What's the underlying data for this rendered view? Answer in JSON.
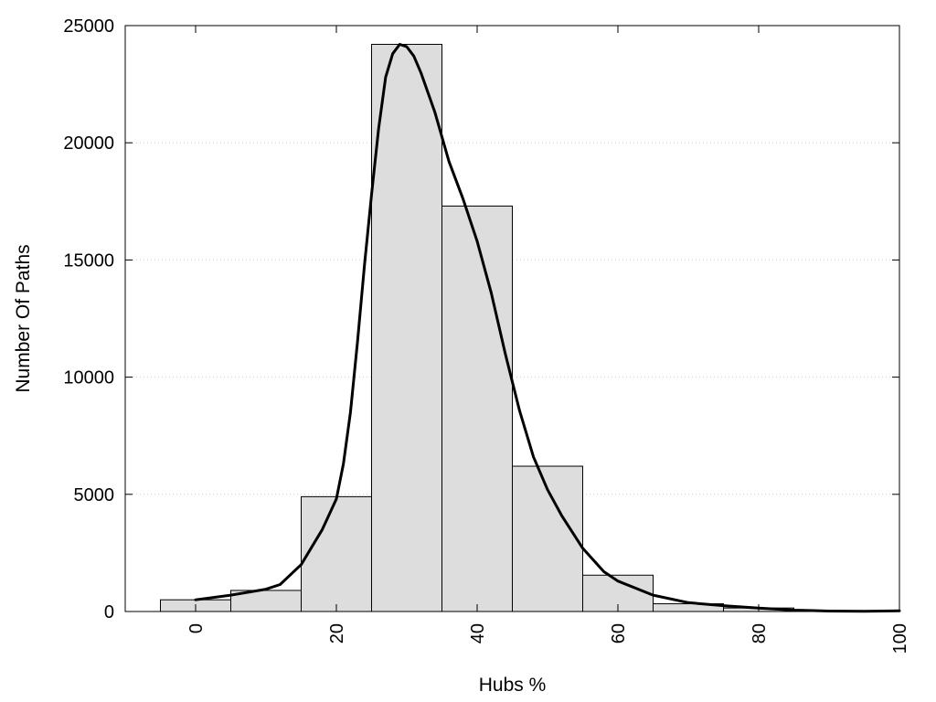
{
  "chart_data": {
    "type": "bar",
    "xlabel": "Hubs %",
    "ylabel": "Number Of Paths",
    "xlim": [
      -10,
      100
    ],
    "ylim": [
      0,
      25000
    ],
    "xticks": [
      0,
      20,
      40,
      60,
      80,
      100
    ],
    "yticks": [
      0,
      5000,
      10000,
      15000,
      20000,
      25000
    ],
    "grid": "y-dotted",
    "bins": [
      {
        "x0": -5,
        "x1": 5,
        "value": 500
      },
      {
        "x0": 5,
        "x1": 15,
        "value": 900
      },
      {
        "x0": 15,
        "x1": 25,
        "value": 4900
      },
      {
        "x0": 25,
        "x1": 35,
        "value": 24200
      },
      {
        "x0": 35,
        "x1": 45,
        "value": 17300
      },
      {
        "x0": 45,
        "x1": 55,
        "value": 6200
      },
      {
        "x0": 55,
        "x1": 65,
        "value": 1550
      },
      {
        "x0": 65,
        "x1": 75,
        "value": 330
      },
      {
        "x0": 75,
        "x1": 85,
        "value": 150
      },
      {
        "x0": 85,
        "x1": 95,
        "value": 40
      },
      {
        "x0": 95,
        "x1": 105,
        "value": 20
      }
    ],
    "curve": {
      "x": [
        0,
        5,
        10,
        12,
        15,
        18,
        20,
        21,
        22,
        23,
        24,
        25,
        26,
        27,
        28,
        29,
        30,
        31,
        32,
        34,
        36,
        38,
        40,
        42,
        44,
        46,
        48,
        50,
        52,
        55,
        58,
        60,
        65,
        70,
        75,
        80,
        85,
        90,
        95,
        100
      ],
      "y": [
        500,
        700,
        950,
        1150,
        2000,
        3500,
        4800,
        6300,
        8500,
        11500,
        14800,
        17800,
        20600,
        22800,
        23800,
        24200,
        24100,
        23700,
        23000,
        21300,
        19200,
        17600,
        15800,
        13600,
        11000,
        8600,
        6600,
        5200,
        4100,
        2700,
        1700,
        1300,
        700,
        380,
        250,
        150,
        60,
        20,
        10,
        30
      ]
    },
    "colors": {
      "bar_fill": "#dddddd",
      "bar_stroke": "#000000",
      "curve": "#000000",
      "grid": "#cccccc"
    }
  }
}
